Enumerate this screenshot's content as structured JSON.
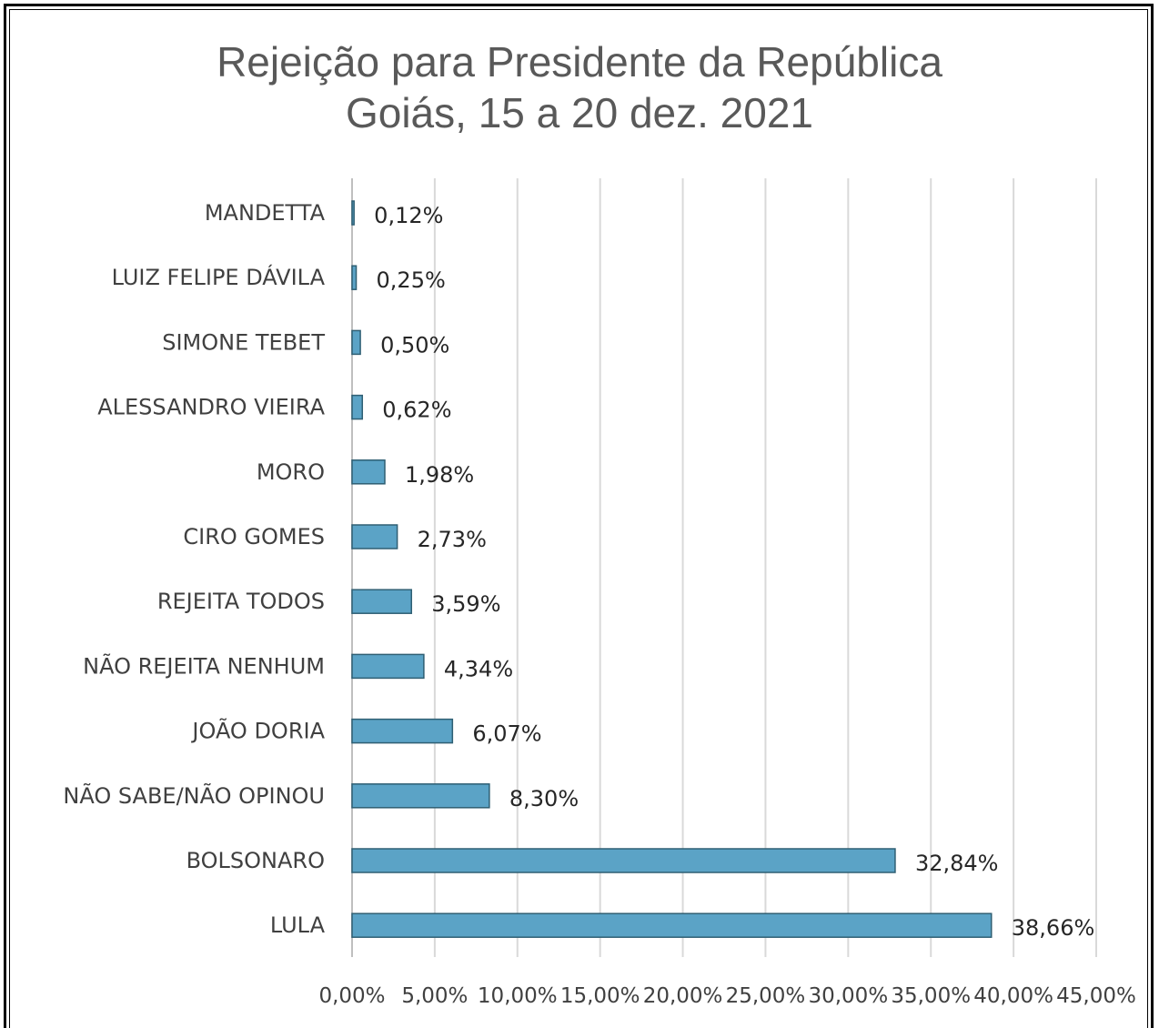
{
  "chart_data": {
    "type": "bar",
    "orientation": "horizontal",
    "title": "Rejeição para Presidente da República",
    "subtitle": "Goiás, 15 a 20 dez. 2021",
    "categories": [
      "MANDETTA",
      "LUIZ FELIPE DÁVILA",
      "SIMONE TEBET",
      "ALESSANDRO VIEIRA",
      "MORO",
      "CIRO GOMES",
      "REJEITA TODOS",
      "NÃO REJEITA NENHUM",
      "JOÃO DORIA",
      "NÃO SABE/NÃO OPINOU",
      "BOLSONARO",
      "LULA"
    ],
    "values": [
      0.12,
      0.25,
      0.5,
      0.62,
      1.98,
      2.73,
      3.59,
      4.34,
      6.07,
      8.3,
      32.84,
      38.66
    ],
    "value_labels": [
      "0,12%",
      "0,25%",
      "0,50%",
      "0,62%",
      "1,98%",
      "2,73%",
      "3,59%",
      "4,34%",
      "6,07%",
      "8,30%",
      "32,84%",
      "38,66%"
    ],
    "xlim": [
      0,
      45
    ],
    "xticks": [
      0,
      5,
      10,
      15,
      20,
      25,
      30,
      35,
      40,
      45
    ],
    "xtick_labels": [
      "0,00%",
      "5,00%",
      "10,00%",
      "15,00%",
      "20,00%",
      "25,00%",
      "30,00%",
      "35,00%",
      "40,00%",
      "45,00%"
    ],
    "grid": true,
    "bar_color": "#5ba3c6",
    "bar_edge_color": "#2f5f73",
    "grid_color": "#d9d9d9"
  }
}
